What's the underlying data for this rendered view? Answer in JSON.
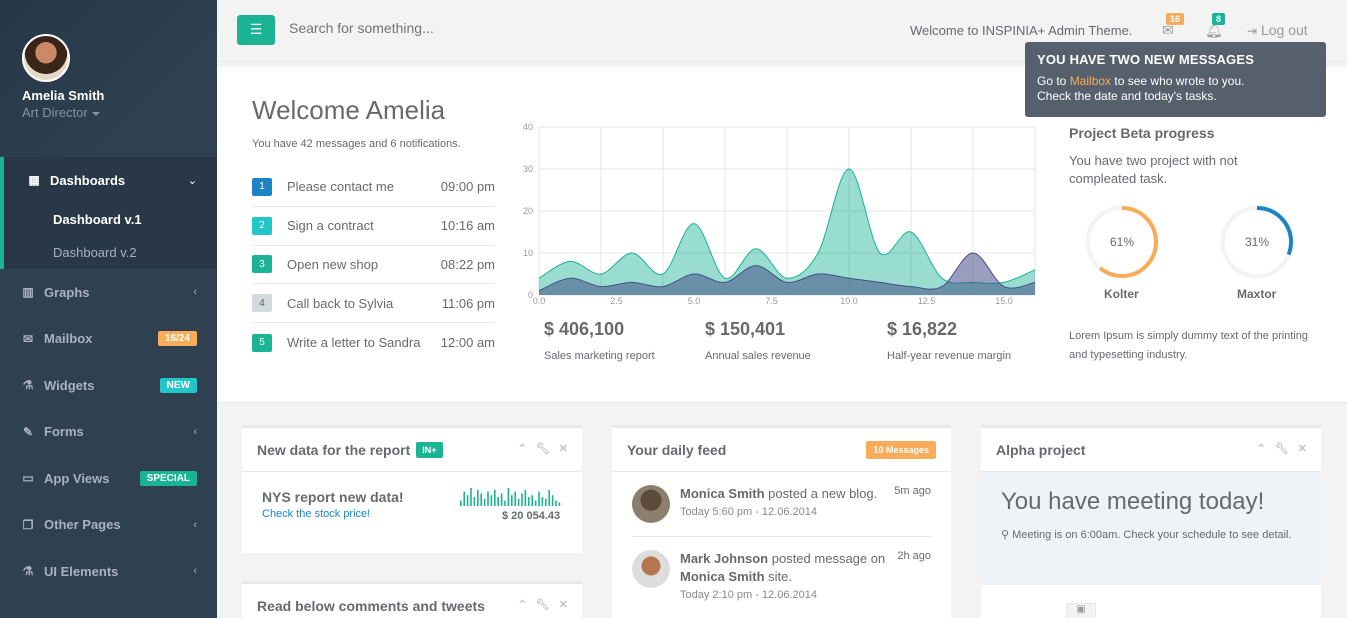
{
  "profile": {
    "name": "Amelia Smith",
    "role": "Art Director"
  },
  "sidebar": {
    "active": {
      "label": "Dashboards",
      "subitems": [
        "Dashboard v.1",
        "Dashboard v.2"
      ]
    },
    "items": [
      {
        "label": "Graphs"
      },
      {
        "label": "Mailbox",
        "badge": "16/24"
      },
      {
        "label": "Widgets",
        "badge": "NEW"
      },
      {
        "label": "Forms"
      },
      {
        "label": "App Views",
        "badge": "SPECIAL"
      },
      {
        "label": "Other Pages"
      },
      {
        "label": "UI Elements"
      }
    ]
  },
  "topbar": {
    "search_placeholder": "Search for something...",
    "welcome": "Welcome to INSPINIA+ Admin Theme.",
    "mail_count": "16",
    "alert_count": "8",
    "logout": "Log out"
  },
  "tooltip": {
    "title": "YOU HAVE TWO NEW MESSAGES",
    "line1_pre": "Go to ",
    "line1_link": "Mailbox",
    "line1_post": " to see who wrote to you.",
    "line2": "Check the date and today's tasks."
  },
  "welcome": {
    "title": "Welcome Amelia",
    "subtitle": "You have 42 messages and 6 notifications.",
    "tasks": [
      {
        "num": "1",
        "text": "Please contact me",
        "time": "09:00 pm",
        "color": "#1c84c6"
      },
      {
        "num": "2",
        "text": "Sign a contract",
        "time": "10:16 am",
        "color": "#23c6c8"
      },
      {
        "num": "3",
        "text": "Open new shop",
        "time": "08:22 pm",
        "color": "#1ab394"
      },
      {
        "num": "4",
        "text": "Call back to Sylvia",
        "time": "11:06 pm",
        "color": "#d1dade"
      },
      {
        "num": "5",
        "text": "Write a letter to Sandra",
        "time": "12:00 am",
        "color": "#1ab394"
      }
    ]
  },
  "chart_data": {
    "type": "area",
    "xlim": [
      0,
      16
    ],
    "ylim": [
      0,
      40
    ],
    "x_ticks": [
      "0.0",
      "2.5",
      "5.0",
      "7.5",
      "10.0",
      "12.5",
      "15.0"
    ],
    "y_ticks": [
      "0",
      "10",
      "20",
      "30",
      "40"
    ],
    "series": [
      {
        "color": "#1ab394",
        "x": [
          0,
          1,
          2,
          3,
          4,
          5,
          6,
          7,
          8,
          9,
          10,
          11,
          12,
          13,
          14,
          15,
          16
        ],
        "y": [
          4,
          8,
          5,
          10,
          5,
          17,
          4,
          11,
          4,
          10,
          30,
          10,
          15,
          4,
          3,
          3,
          6
        ]
      },
      {
        "color": "#464f88",
        "x": [
          0,
          1,
          2,
          3,
          4,
          5,
          6,
          7,
          8,
          9,
          10,
          11,
          12,
          13,
          14,
          15,
          16
        ],
        "y": [
          1,
          4,
          2,
          3,
          2,
          5,
          3,
          7,
          3,
          5,
          4,
          3,
          2,
          2,
          10,
          2,
          3
        ]
      }
    ]
  },
  "stats": [
    {
      "value": "$ 406,100",
      "label": "Sales marketing report"
    },
    {
      "value": "$ 150,401",
      "label": "Annual sales revenue"
    },
    {
      "value": "$ 16,822",
      "label": "Half-year revenue margin"
    }
  ],
  "project": {
    "title": "Project Beta progress",
    "subtitle": "You have two project with not compleated task.",
    "donuts": [
      {
        "value": 61,
        "text": "61%",
        "name": "Kolter",
        "color": "#f8ac59"
      },
      {
        "value": 31,
        "text": "31%",
        "name": "Maxtor",
        "color": "#1c84c6"
      }
    ],
    "lorem": "Lorem Ipsum is simply dummy text of the printing and typesetting industry."
  },
  "report_panel": {
    "title": "New data for the report",
    "pill": "IN+",
    "headline": "NYS report new data!",
    "link": "Check the stock price!",
    "amount": "$ 20 054.43",
    "spark": [
      3,
      8,
      6,
      10,
      5,
      9,
      7,
      4,
      8,
      6,
      9,
      5,
      7,
      3,
      10,
      6,
      8,
      4,
      7,
      9,
      5,
      6,
      3,
      8,
      5,
      4,
      9,
      6,
      3,
      2
    ]
  },
  "comments_panel": {
    "title": "Read below comments and tweets"
  },
  "feed_panel": {
    "title": "Your daily feed",
    "pill": "10 Messages",
    "items": [
      {
        "name": "Monica Smith",
        "action": " posted a new blog.",
        "ago": "5m ago",
        "time": "Today 5:60 pm - 12.06.2014"
      },
      {
        "name": "Mark Johnson",
        "action": " posted message on ",
        "target": "Monica Smith",
        "post": " site.",
        "ago": "2h ago",
        "time": "Today 2:10 pm - 12.06.2014"
      }
    ]
  },
  "alpha_panel": {
    "title": "Alpha project",
    "headline": "You have meeting today!",
    "note": "Meeting is on 6:00am. Check your schedule to see detail."
  },
  "colors": {
    "primary": "#1ab394",
    "sidebar": "#2f4050",
    "warning": "#f8ac59",
    "success": "#1c84c6",
    "info": "#23c6c8"
  }
}
